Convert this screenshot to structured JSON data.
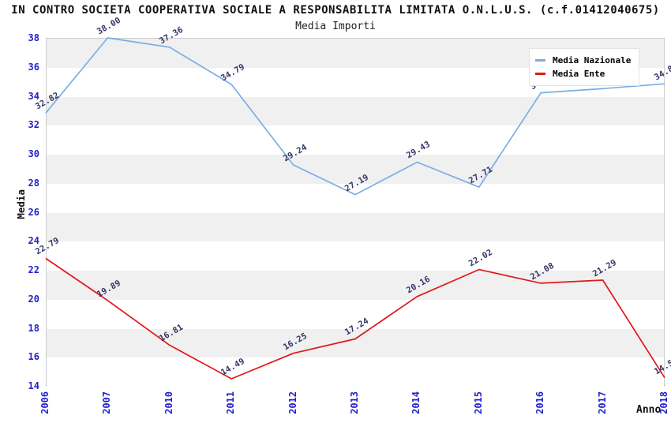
{
  "header": {
    "title": "IN CONTRO SOCIETA COOPERATIVA SOCIALE A RESPONSABILITA LIMITATA O.N.L.U.S. (c.f.01412040675)",
    "subtitle": "Media Importi"
  },
  "chart_data": {
    "type": "line",
    "title": "IN CONTRO SOCIETA COOPERATIVA SOCIALE A RESPONSABILITA LIMITATA O.N.L.U.S. (c.f.01412040675)",
    "subtitle": "Media Importi",
    "xlabel": "Anno",
    "ylabel": "Media",
    "categories": [
      "2006",
      "2007",
      "2010",
      "2011",
      "2012",
      "2013",
      "2014",
      "2015",
      "2016",
      "2017",
      "2018"
    ],
    "series": [
      {
        "name": "Media Nazionale",
        "color": "#7aade4",
        "values": [
          32.82,
          38.0,
          37.36,
          34.79,
          29.24,
          27.19,
          29.43,
          27.71,
          34.21,
          34.5,
          34.83
        ]
      },
      {
        "name": "Media Ente",
        "color": "#e01818",
        "values": [
          22.79,
          19.89,
          16.81,
          14.49,
          16.25,
          17.24,
          20.16,
          22.02,
          21.08,
          21.29,
          14.56
        ]
      }
    ],
    "ylim": [
      14,
      38
    ],
    "ytick_step": 2,
    "legend_position": "top-right",
    "grid": "horizontal-bands",
    "band_colors": [
      "#f0f0f0",
      "#ffffff"
    ],
    "tick_label_color": "#2222cc",
    "value_label_color": "#333366",
    "note": "2016 and 2017 Media Nazionale point labels are hidden behind the legend box"
  }
}
